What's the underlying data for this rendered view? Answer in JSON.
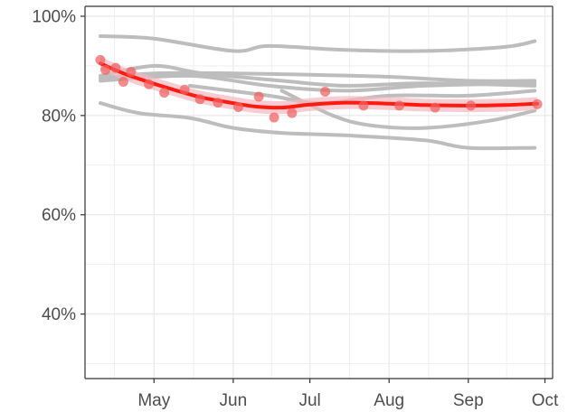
{
  "chart_data": {
    "type": "line",
    "title": "",
    "xlabel": "",
    "ylabel": "",
    "x_ticks": [
      {
        "label": "May",
        "date": "2020-05-01"
      },
      {
        "label": "Jun",
        "date": "2020-06-01"
      },
      {
        "label": "Jul",
        "date": "2020-07-01"
      },
      {
        "label": "Aug",
        "date": "2020-08-01"
      },
      {
        "label": "Sep",
        "date": "2020-09-01"
      },
      {
        "label": "Oct",
        "date": "2020-10-01"
      }
    ],
    "y_ticks": [
      {
        "label": "40%",
        "value": 40
      },
      {
        "label": "60%",
        "value": 60
      },
      {
        "label": "80%",
        "value": 80
      },
      {
        "label": "100%",
        "value": 100
      }
    ],
    "xlim": [
      "2020-04-04",
      "2020-10-04"
    ],
    "ylim": [
      27,
      102
    ],
    "grid": true,
    "colors": {
      "background_series": "#bdbdbd",
      "trend_line": "#ff1a0f",
      "points": "#f06060",
      "ribbon": "#f4b8c0",
      "grid": "#ebebeb",
      "axis": "#333333"
    },
    "background_series": [
      {
        "values": [
          {
            "x": "2020-04-10",
            "y": 96
          },
          {
            "x": "2020-05-01",
            "y": 95.5
          },
          {
            "x": "2020-06-01",
            "y": 93
          },
          {
            "x": "2020-06-15",
            "y": 94
          },
          {
            "x": "2020-07-15",
            "y": 93.2
          },
          {
            "x": "2020-08-15",
            "y": 93
          },
          {
            "x": "2020-09-15",
            "y": 93.8
          },
          {
            "x": "2020-09-27",
            "y": 95
          }
        ]
      },
      {
        "values": [
          {
            "x": "2020-04-10",
            "y": 87.5
          },
          {
            "x": "2020-05-01",
            "y": 88.5
          },
          {
            "x": "2020-06-01",
            "y": 88.5
          },
          {
            "x": "2020-07-01",
            "y": 88.2
          },
          {
            "x": "2020-08-01",
            "y": 87.8
          },
          {
            "x": "2020-09-01",
            "y": 87
          },
          {
            "x": "2020-09-27",
            "y": 87
          }
        ]
      },
      {
        "values": [
          {
            "x": "2020-04-10",
            "y": 88
          },
          {
            "x": "2020-05-01",
            "y": 90
          },
          {
            "x": "2020-05-20",
            "y": 88.5
          },
          {
            "x": "2020-06-20",
            "y": 87
          },
          {
            "x": "2020-07-15",
            "y": 86
          },
          {
            "x": "2020-08-15",
            "y": 86.5
          },
          {
            "x": "2020-09-27",
            "y": 86
          }
        ]
      },
      {
        "values": [
          {
            "x": "2020-04-10",
            "y": 87
          },
          {
            "x": "2020-05-15",
            "y": 88
          },
          {
            "x": "2020-06-15",
            "y": 86
          },
          {
            "x": "2020-07-15",
            "y": 85
          },
          {
            "x": "2020-08-15",
            "y": 86
          },
          {
            "x": "2020-09-27",
            "y": 86.5
          }
        ]
      },
      {
        "values": [
          {
            "x": "2020-05-15",
            "y": 86
          },
          {
            "x": "2020-06-15",
            "y": 84
          },
          {
            "x": "2020-07-05",
            "y": 82.5
          },
          {
            "x": "2020-08-01",
            "y": 84
          },
          {
            "x": "2020-09-01",
            "y": 84
          },
          {
            "x": "2020-09-27",
            "y": 85
          }
        ]
      },
      {
        "values": [
          {
            "x": "2020-06-20",
            "y": 85
          },
          {
            "x": "2020-07-10",
            "y": 80
          },
          {
            "x": "2020-07-25",
            "y": 78
          },
          {
            "x": "2020-08-15",
            "y": 77.5
          },
          {
            "x": "2020-09-10",
            "y": 79
          },
          {
            "x": "2020-09-27",
            "y": 81
          }
        ]
      },
      {
        "values": [
          {
            "x": "2020-04-10",
            "y": 82.5
          },
          {
            "x": "2020-04-25",
            "y": 80.5
          },
          {
            "x": "2020-05-15",
            "y": 79.5
          },
          {
            "x": "2020-06-01",
            "y": 77.5
          },
          {
            "x": "2020-06-20",
            "y": 76.5
          },
          {
            "x": "2020-07-15",
            "y": 76
          },
          {
            "x": "2020-08-15",
            "y": 75
          },
          {
            "x": "2020-09-01",
            "y": 73.5
          },
          {
            "x": "2020-09-27",
            "y": 73.5
          }
        ]
      }
    ],
    "trend": [
      {
        "x": "2020-04-10",
        "y": 90.5
      },
      {
        "x": "2020-04-20",
        "y": 88.3
      },
      {
        "x": "2020-05-01",
        "y": 86.4
      },
      {
        "x": "2020-05-10",
        "y": 85
      },
      {
        "x": "2020-05-20",
        "y": 83.6
      },
      {
        "x": "2020-06-01",
        "y": 82.5
      },
      {
        "x": "2020-06-10",
        "y": 81.8
      },
      {
        "x": "2020-06-20",
        "y": 81.6
      },
      {
        "x": "2020-07-01",
        "y": 82.2
      },
      {
        "x": "2020-07-15",
        "y": 82.6
      },
      {
        "x": "2020-08-01",
        "y": 82.4
      },
      {
        "x": "2020-08-15",
        "y": 82.1
      },
      {
        "x": "2020-09-01",
        "y": 82
      },
      {
        "x": "2020-09-15",
        "y": 82.1
      },
      {
        "x": "2020-09-28",
        "y": 82.4
      }
    ],
    "ribbon_halfwidth": 1.3,
    "points": [
      {
        "x": "2020-04-10",
        "y": 91.2
      },
      {
        "x": "2020-04-12",
        "y": 89.2
      },
      {
        "x": "2020-04-16",
        "y": 89.6
      },
      {
        "x": "2020-04-19",
        "y": 86.8
      },
      {
        "x": "2020-04-22",
        "y": 88.8
      },
      {
        "x": "2020-04-29",
        "y": 86.3
      },
      {
        "x": "2020-05-05",
        "y": 84.6
      },
      {
        "x": "2020-05-13",
        "y": 85.2
      },
      {
        "x": "2020-05-19",
        "y": 83.3
      },
      {
        "x": "2020-05-26",
        "y": 82.6
      },
      {
        "x": "2020-06-03",
        "y": 81.7
      },
      {
        "x": "2020-06-11",
        "y": 83.8
      },
      {
        "x": "2020-06-17",
        "y": 79.6
      },
      {
        "x": "2020-06-24",
        "y": 80.5
      },
      {
        "x": "2020-07-07",
        "y": 84.8
      },
      {
        "x": "2020-07-22",
        "y": 82
      },
      {
        "x": "2020-08-05",
        "y": 82
      },
      {
        "x": "2020-08-19",
        "y": 81.6
      },
      {
        "x": "2020-09-02",
        "y": 82
      },
      {
        "x": "2020-09-28",
        "y": 82.3
      }
    ]
  }
}
